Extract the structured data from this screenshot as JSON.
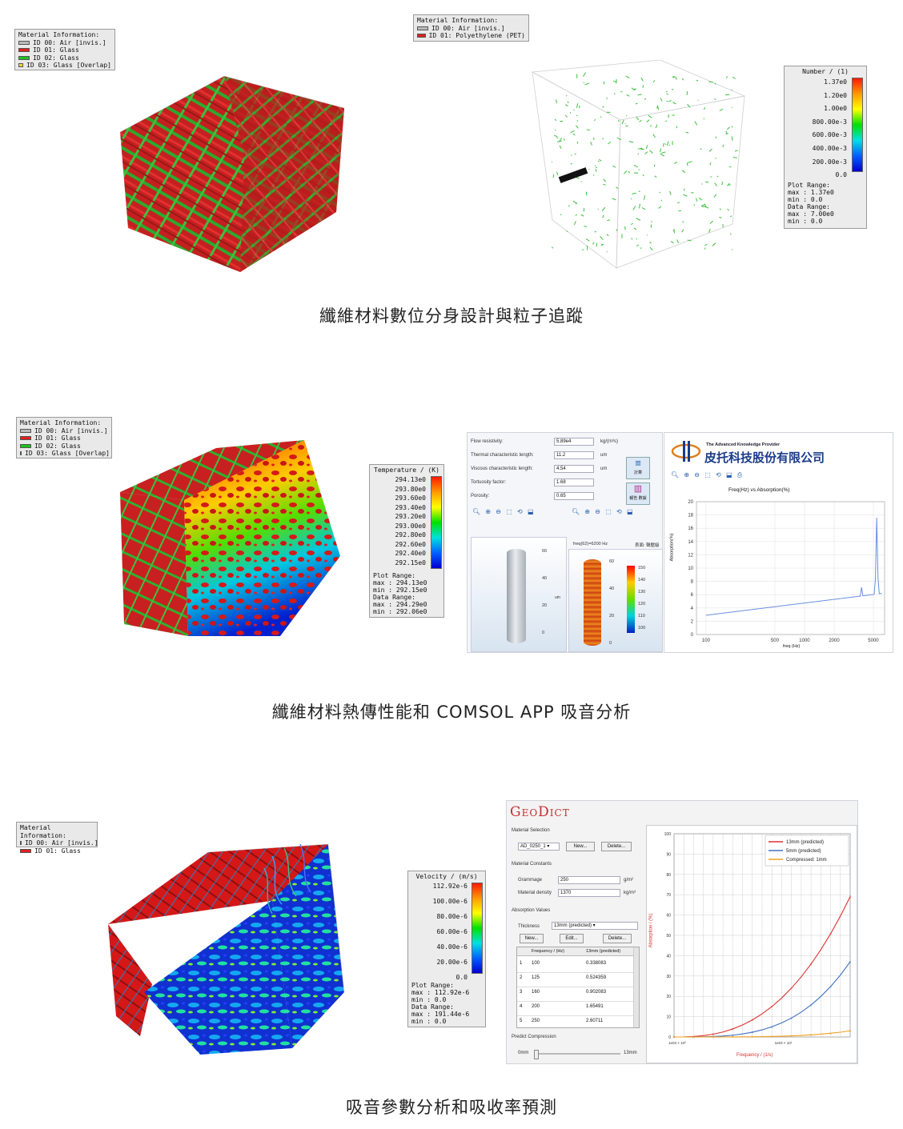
{
  "section1": {
    "caption": "纖維材料數位分身設計與粒子追蹤",
    "left_legend": {
      "title": "Material Information:",
      "items": [
        {
          "label": "ID 00: Air [invis.]",
          "color": "#bbbbbb"
        },
        {
          "label": "ID 01: Glass",
          "color": "#e02020"
        },
        {
          "label": "ID 02: Glass",
          "color": "#20c020"
        },
        {
          "label": "ID 03: Glass [Overlap]",
          "color": "#e8e020"
        }
      ]
    },
    "right_legend": {
      "title": "Material Information:",
      "items": [
        {
          "label": "ID 00: Air [invis.]",
          "color": "#bbbbbb"
        },
        {
          "label": "ID 01: Polyethylene (PET)",
          "color": "#e02020"
        }
      ]
    },
    "colorbar": {
      "title": "Number / (1)",
      "ticks": [
        "1.37e0",
        "1.20e0",
        "1.00e0",
        "800.00e-3",
        "600.00e-3",
        "400.00e-3",
        "200.00e-3",
        "0.0"
      ],
      "info": [
        "Plot Range:",
        "max : 1.37e0",
        "min : 0.0",
        "Data Range:",
        "max : 7.00e0",
        "min : 0.0"
      ]
    }
  },
  "section2": {
    "caption": "纖維材料熱傳性能和 COMSOL APP 吸音分析",
    "legend": {
      "title": "Material Information:",
      "items": [
        {
          "label": "ID 00: Air [invis.]",
          "color": "#bbbbbb"
        },
        {
          "label": "ID 01: Glass",
          "color": "#e02020"
        },
        {
          "label": "ID 02: Glass",
          "color": "#20c020"
        },
        {
          "label": "ID 03: Glass [Overlap]",
          "color": "#e8e020"
        }
      ]
    },
    "colorbar": {
      "title": "Temperature / (K)",
      "ticks": [
        "294.13e0",
        "293.80e0",
        "293.60e0",
        "293.40e0",
        "293.20e0",
        "293.00e0",
        "292.80e0",
        "292.60e0",
        "292.40e0",
        "292.15e0"
      ],
      "info": [
        "Plot Range:",
        "max : 294.13e0",
        "min : 292.15e0",
        "Data Range:",
        "max : 294.29e0",
        "min : 292.06e0"
      ]
    },
    "app": {
      "params": [
        {
          "label": "Flow resistivity:",
          "value": "5.89e4",
          "unit": "kg/(m³s)"
        },
        {
          "label": "Thermal characteristic length:",
          "value": "11.2",
          "unit": "um"
        },
        {
          "label": "Viscous characteristic length:",
          "value": "4.54",
          "unit": "um"
        },
        {
          "label": "Tortuosity factor:",
          "value": "1.68",
          "unit": ""
        },
        {
          "label": "Porosity:",
          "value": "0.65",
          "unit": ""
        }
      ],
      "compute_label": "計算",
      "report_label": "報告 數據",
      "company_tagline": "The Advanced Knowledge Provider",
      "company_name": "皮托科技股份有限公司",
      "freq_label": "freq(62)=6200 Hz",
      "surface_label": "表面: 聲壓級",
      "mini_axis_a": [
        "60",
        "40",
        "20",
        "0"
      ],
      "mini_axis_b": [
        "60",
        "40",
        "20",
        "0"
      ],
      "mini_unit": "um",
      "mini_cbar_ticks": [
        "150",
        "140",
        "130",
        "120",
        "110",
        "100"
      ]
    },
    "chart": {
      "title": "Freq(Hz) vs Absorption(%)",
      "xlabel": "freq (Hz)",
      "ylabel": "Absorption(%)"
    }
  },
  "section3": {
    "caption": "吸音參數分析和吸收率預測",
    "legend": {
      "title": "Material Information:",
      "items": [
        {
          "label": "ID 00: Air [invis.]",
          "color": "#bbbbbb"
        },
        {
          "label": "ID 01: Glass",
          "color": "#e02020"
        }
      ]
    },
    "colorbar": {
      "title": "Velocity / (m/s)",
      "ticks": [
        "112.92e-6",
        "100.00e-6",
        "80.00e-6",
        "60.00e-6",
        "40.00e-6",
        "20.00e-6",
        "0.0"
      ],
      "info": [
        "Plot Range:",
        "max : 112.92e-6",
        "min : 0.0",
        "Data Range:",
        "max : 191.44e-6",
        "min : 0.0"
      ]
    },
    "geodict": {
      "logo": "GeoDict",
      "material_selection": "Material Selection",
      "material_value": "AD_0250_1",
      "new_label": "New...",
      "delete_label": "Delete...",
      "material_constants": "Material Constants",
      "grammage_label": "Grammage",
      "grammage_value": "250",
      "grammage_unit": "g/m²",
      "density_label": "Material density",
      "density_value": "1370",
      "density_unit": "kg/m³",
      "absorption_values": "Absorption Values",
      "thickness_label": "Thickness",
      "thickness_value": "13mm (predicted)",
      "edit_label": "Edit...",
      "col_freq": "Frequency / (Hz)",
      "col_val": "13mm (predicted)",
      "rows": [
        {
          "i": "1",
          "f": "100",
          "v": "0.338083"
        },
        {
          "i": "2",
          "f": "125",
          "v": "0.524359"
        },
        {
          "i": "3",
          "f": "160",
          "v": "0.902083"
        },
        {
          "i": "4",
          "f": "200",
          "v": "1.65491"
        },
        {
          "i": "5",
          "f": "250",
          "v": "2.60711"
        }
      ],
      "predict_compression": "Predict Compression",
      "slider_min": "0mm",
      "slider_max": "13mm"
    },
    "chart": {
      "ylabel": "Absorption / (%)",
      "xlabel": "Frequency / (1/s)",
      "yticks": [
        "100",
        "90",
        "80",
        "70",
        "60",
        "50",
        "40",
        "30",
        "20",
        "10",
        "0"
      ],
      "xticks": [
        "1e03 × 10⁰",
        "1e03 × 10¹"
      ],
      "series": [
        {
          "name": "13mm (predicted)",
          "color": "#e03030"
        },
        {
          "name": "5mm (predicted)",
          "color": "#4070c0"
        },
        {
          "name": "Compressed: 1mm",
          "color": "#f0a020"
        }
      ]
    }
  }
}
